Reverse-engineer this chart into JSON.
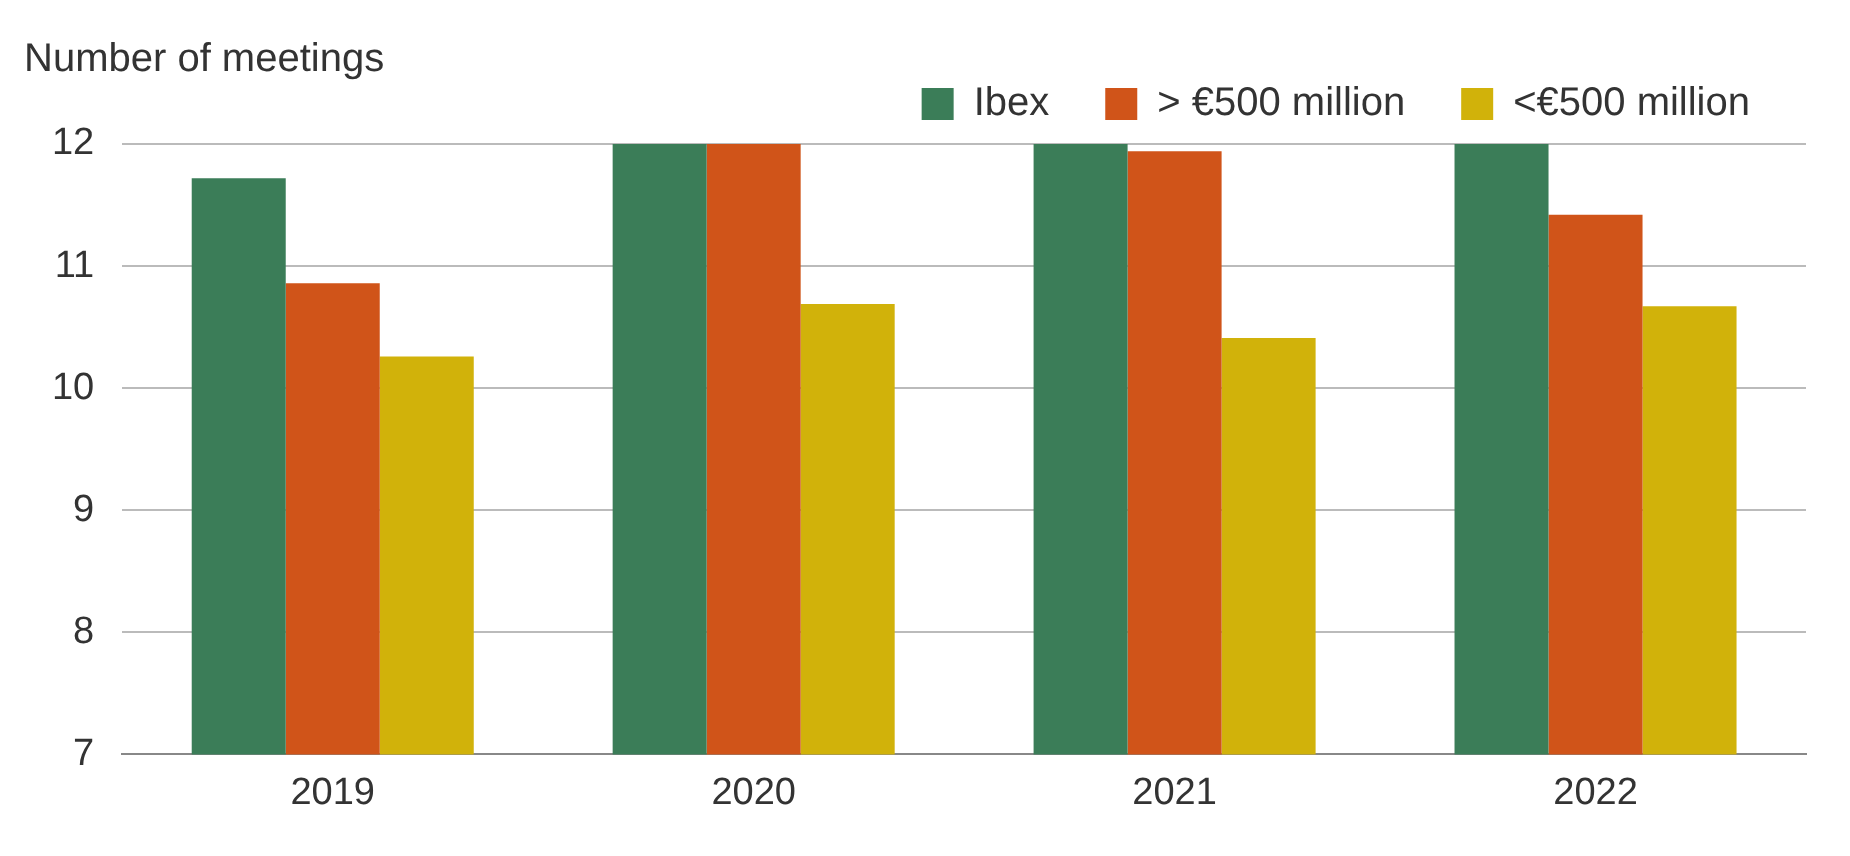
{
  "chart_data": {
    "type": "bar",
    "ylabel": "Number of meetings",
    "categories": [
      "2019",
      "2020",
      "2021",
      "2022"
    ],
    "series": [
      {
        "name": "Ibex",
        "color": "#3b7d58",
        "values": [
          11.72,
          12,
          12,
          12
        ]
      },
      {
        "name": "> €500 million",
        "color": "#d05419",
        "values": [
          10.86,
          12,
          11.94,
          11.42
        ]
      },
      {
        "name": "<€500 million",
        "color": "#d1b20a",
        "values": [
          10.26,
          10.69,
          10.41,
          10.67
        ]
      }
    ],
    "ylim": [
      7,
      12
    ],
    "yticks": [
      7,
      8,
      9,
      10,
      11,
      12
    ],
    "grid": "y",
    "legend": "top right"
  }
}
